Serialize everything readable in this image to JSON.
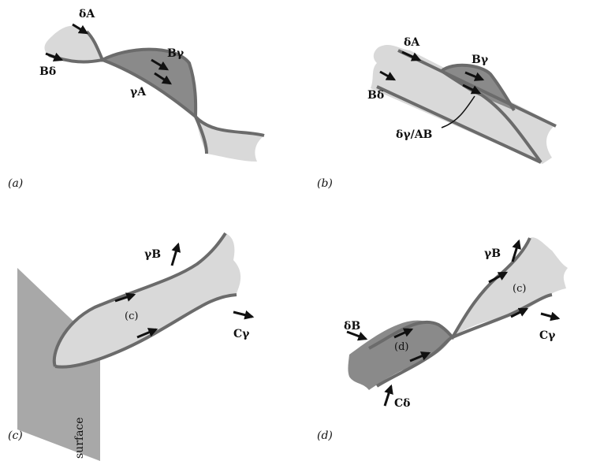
{
  "colors": {
    "light_fill": "#d9d9d9",
    "dark_fill": "#8a8a8a",
    "outline": "#6b6b6b",
    "arrow": "#111111",
    "surface": "#a8a8a8"
  },
  "panels": {
    "a": {
      "label": "(a)",
      "labels": {
        "dA": "δA",
        "Bd": "Bδ",
        "By": "Bγ",
        "yA": "γA"
      }
    },
    "b": {
      "label": "(b)",
      "labels": {
        "dA": "δA",
        "Bd": "Bδ",
        "By": "Bγ",
        "dyAB": "δγ/AB"
      }
    },
    "c": {
      "label": "(c)",
      "labels": {
        "yB": "γB",
        "Cy": "Cγ",
        "region": "(c)",
        "surface": "surface"
      }
    },
    "d": {
      "label": "(d)",
      "labels": {
        "yB": "γB",
        "dB": "δB",
        "Cd": "Cδ",
        "Cy": "Cγ",
        "region_c": "(c)",
        "region_d": "(d)"
      }
    }
  }
}
